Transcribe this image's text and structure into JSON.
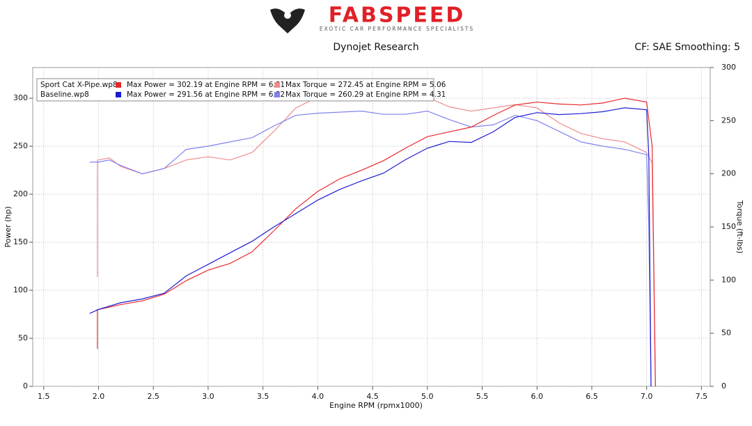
{
  "header": {
    "brand": "FABSPEED",
    "tagline": "EXOTIC CAR PERFORMANCE SPECIALISTS"
  },
  "chart_data": {
    "type": "line",
    "title": "Dynojet Research",
    "subtitle": "CF: SAE Smoothing: 5",
    "x_label": "Engine RPM (rpmx1000)",
    "y_label": "Power (hp)",
    "y2_label": "Torque (ft-lbs)",
    "xlim": [
      1.4,
      7.58
    ],
    "ylim": [
      0,
      332
    ],
    "y2lim": [
      0,
      300
    ],
    "xticks": [
      1.5,
      {
        "value": 2,
        "label": "2.0"
      },
      2.5,
      {
        "value": 3,
        "label": "3.0"
      },
      3.5,
      {
        "value": 4,
        "label": "4.0"
      },
      4.5,
      {
        "value": 5,
        "label": "5.0"
      },
      5.5,
      {
        "value": 6,
        "label": "6.0"
      },
      6.5,
      {
        "value": 7,
        "label": "7.0"
      },
      7.5
    ],
    "yticks": [
      0,
      50,
      100,
      150,
      200,
      250,
      300
    ],
    "y2ticks": [
      0,
      50,
      100,
      150,
      200,
      250,
      300
    ],
    "grid": true,
    "files": [
      "Sport Cat X-Pipe.wp8",
      "Baseline.wp8"
    ],
    "series": [
      {
        "name": "Max Power = 302.19 at Engine RPM = 6.81",
        "color": "#e8282d",
        "axis": "y",
        "x": [
          1.99,
          1.99,
          2.0,
          2.2,
          2.4,
          2.6,
          2.8,
          3.0,
          3.2,
          3.4,
          3.6,
          3.8,
          4.0,
          4.2,
          4.4,
          4.6,
          4.8,
          5.0,
          5.2,
          5.4,
          5.6,
          5.8,
          6.0,
          6.2,
          6.4,
          6.6,
          6.8,
          7.0,
          7.05,
          7.08
        ],
        "values": [
          39,
          80,
          80,
          85,
          89,
          96,
          110,
          121,
          128,
          140,
          162,
          185,
          203,
          216,
          225,
          235,
          248,
          260,
          265,
          270,
          282,
          293,
          296,
          294,
          293,
          295,
          300,
          296,
          250,
          0
        ]
      },
      {
        "name": "Max Power = 291.56 at Engine RPM = 6.82",
        "color": "#1c1cd6",
        "axis": "y",
        "x": [
          1.92,
          2.0,
          2.2,
          2.4,
          2.6,
          2.8,
          3.0,
          3.2,
          3.4,
          3.6,
          3.8,
          4.0,
          4.2,
          4.4,
          4.6,
          4.8,
          5.0,
          5.2,
          5.4,
          5.6,
          5.8,
          6.0,
          6.2,
          6.4,
          6.6,
          6.8,
          7.0,
          7.02,
          7.04
        ],
        "values": [
          76,
          80,
          87,
          91,
          97,
          115,
          127,
          139,
          151,
          166,
          180,
          194,
          205,
          214,
          222,
          236,
          248,
          255,
          254,
          265,
          280,
          285,
          283,
          284,
          286,
          290,
          288,
          240,
          0
        ]
      },
      {
        "name": "Max Torque = 272.45 at Engine RPM = 5.06",
        "color": "#f08a8a",
        "axis": "y2",
        "x": [
          1.99,
          1.99,
          2.0,
          2.1,
          2.2,
          2.4,
          2.6,
          2.8,
          3.0,
          3.2,
          3.4,
          3.6,
          3.8,
          4.0,
          4.2,
          4.4,
          4.6,
          4.8,
          5.0,
          5.2,
          5.4,
          5.6,
          5.8,
          6.0,
          6.2,
          6.4,
          6.6,
          6.8,
          7.0,
          7.05,
          7.08
        ],
        "values": [
          103,
          213,
          213,
          215,
          207,
          200,
          205,
          213,
          216,
          213,
          220,
          240,
          262,
          272,
          270,
          271,
          270,
          270,
          272,
          263,
          259,
          262,
          265,
          262,
          248,
          238,
          233,
          230,
          220,
          210,
          0
        ]
      },
      {
        "name": "Max Torque = 260.29 at Engine RPM = 4.31",
        "color": "#8080f0",
        "axis": "y2",
        "x": [
          1.92,
          2.0,
          2.1,
          2.2,
          2.4,
          2.6,
          2.8,
          3.0,
          3.2,
          3.4,
          3.6,
          3.8,
          4.0,
          4.2,
          4.4,
          4.6,
          4.8,
          5.0,
          5.2,
          5.4,
          5.6,
          5.8,
          6.0,
          6.2,
          6.4,
          6.6,
          6.8,
          7.0,
          7.02,
          7.04
        ],
        "values": [
          211,
          211,
          213,
          208,
          200,
          205,
          223,
          226,
          230,
          234,
          245,
          255,
          257,
          258,
          259,
          256,
          256,
          259,
          251,
          244,
          246,
          255,
          250,
          240,
          230,
          226,
          223,
          218,
          150,
          0
        ]
      }
    ]
  }
}
